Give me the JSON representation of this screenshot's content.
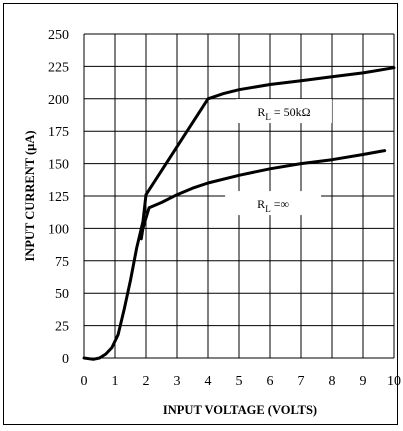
{
  "chart_data": {
    "type": "line",
    "title": "",
    "xlabel": "INPUT VOLTAGE  (VOLTS)",
    "ylabel": "INPUT CURRENT  (µA)",
    "xlim": [
      0,
      10
    ],
    "ylim": [
      0,
      250
    ],
    "x_ticks": [
      0,
      1,
      2,
      3,
      4,
      5,
      6,
      7,
      8,
      9,
      10
    ],
    "y_ticks": [
      0,
      25,
      50,
      75,
      100,
      125,
      150,
      175,
      200,
      225,
      250
    ],
    "grid": true,
    "series": [
      {
        "name": "R",
        "subscript": "L",
        "suffix": " = 50kΩ",
        "color": "#000000",
        "x": [
          0,
          0.3,
          0.5,
          0.7,
          0.9,
          1.1,
          1.3,
          1.5,
          1.7,
          1.9,
          1.95,
          2.0,
          4.0,
          4.5,
          5,
          6,
          7,
          8,
          9,
          10
        ],
        "y": [
          0,
          -1,
          0,
          3,
          8,
          18,
          38,
          60,
          85,
          105,
          115,
          126,
          200,
          204,
          207,
          211,
          214,
          217,
          220,
          224
        ]
      },
      {
        "name": "R",
        "subscript": "L",
        "suffix": " =∞",
        "color": "#000000",
        "x": [
          1.85,
          1.9,
          2.0,
          2.1,
          2.5,
          3,
          3.5,
          4,
          5,
          6,
          7,
          8,
          9,
          9.7
        ],
        "y": [
          92,
          100,
          108,
          116,
          120,
          126,
          131,
          135,
          141,
          146,
          150,
          153,
          157,
          160
        ]
      }
    ]
  }
}
